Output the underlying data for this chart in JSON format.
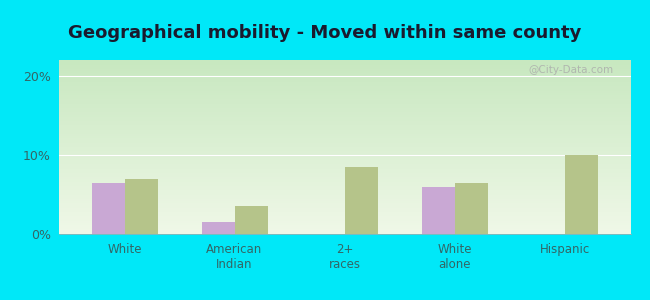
{
  "title": "Geographical mobility - Moved within same county",
  "categories": [
    "White",
    "American\nIndian",
    "2+\nraces",
    "White\nalone",
    "Hispanic"
  ],
  "dunseith_values": [
    6.5,
    1.5,
    0,
    6.0,
    0
  ],
  "nd_values": [
    7.0,
    3.5,
    8.5,
    6.5,
    10.0
  ],
  "dunseith_color": "#c9a8d4",
  "nd_color": "#b5c48a",
  "background_cyan": "#00e8f8",
  "ylim": [
    0,
    22
  ],
  "yticks": [
    0,
    10,
    20
  ],
  "ytick_labels": [
    "0%",
    "10%",
    "20%"
  ],
  "bar_width": 0.3,
  "title_fontsize": 13,
  "watermark": "@City-Data.com",
  "title_color": "#1a1a2e",
  "tick_color": "#336666",
  "plot_grad_top": "#f0f8e8",
  "plot_grad_bottom": "#c8e8c0"
}
